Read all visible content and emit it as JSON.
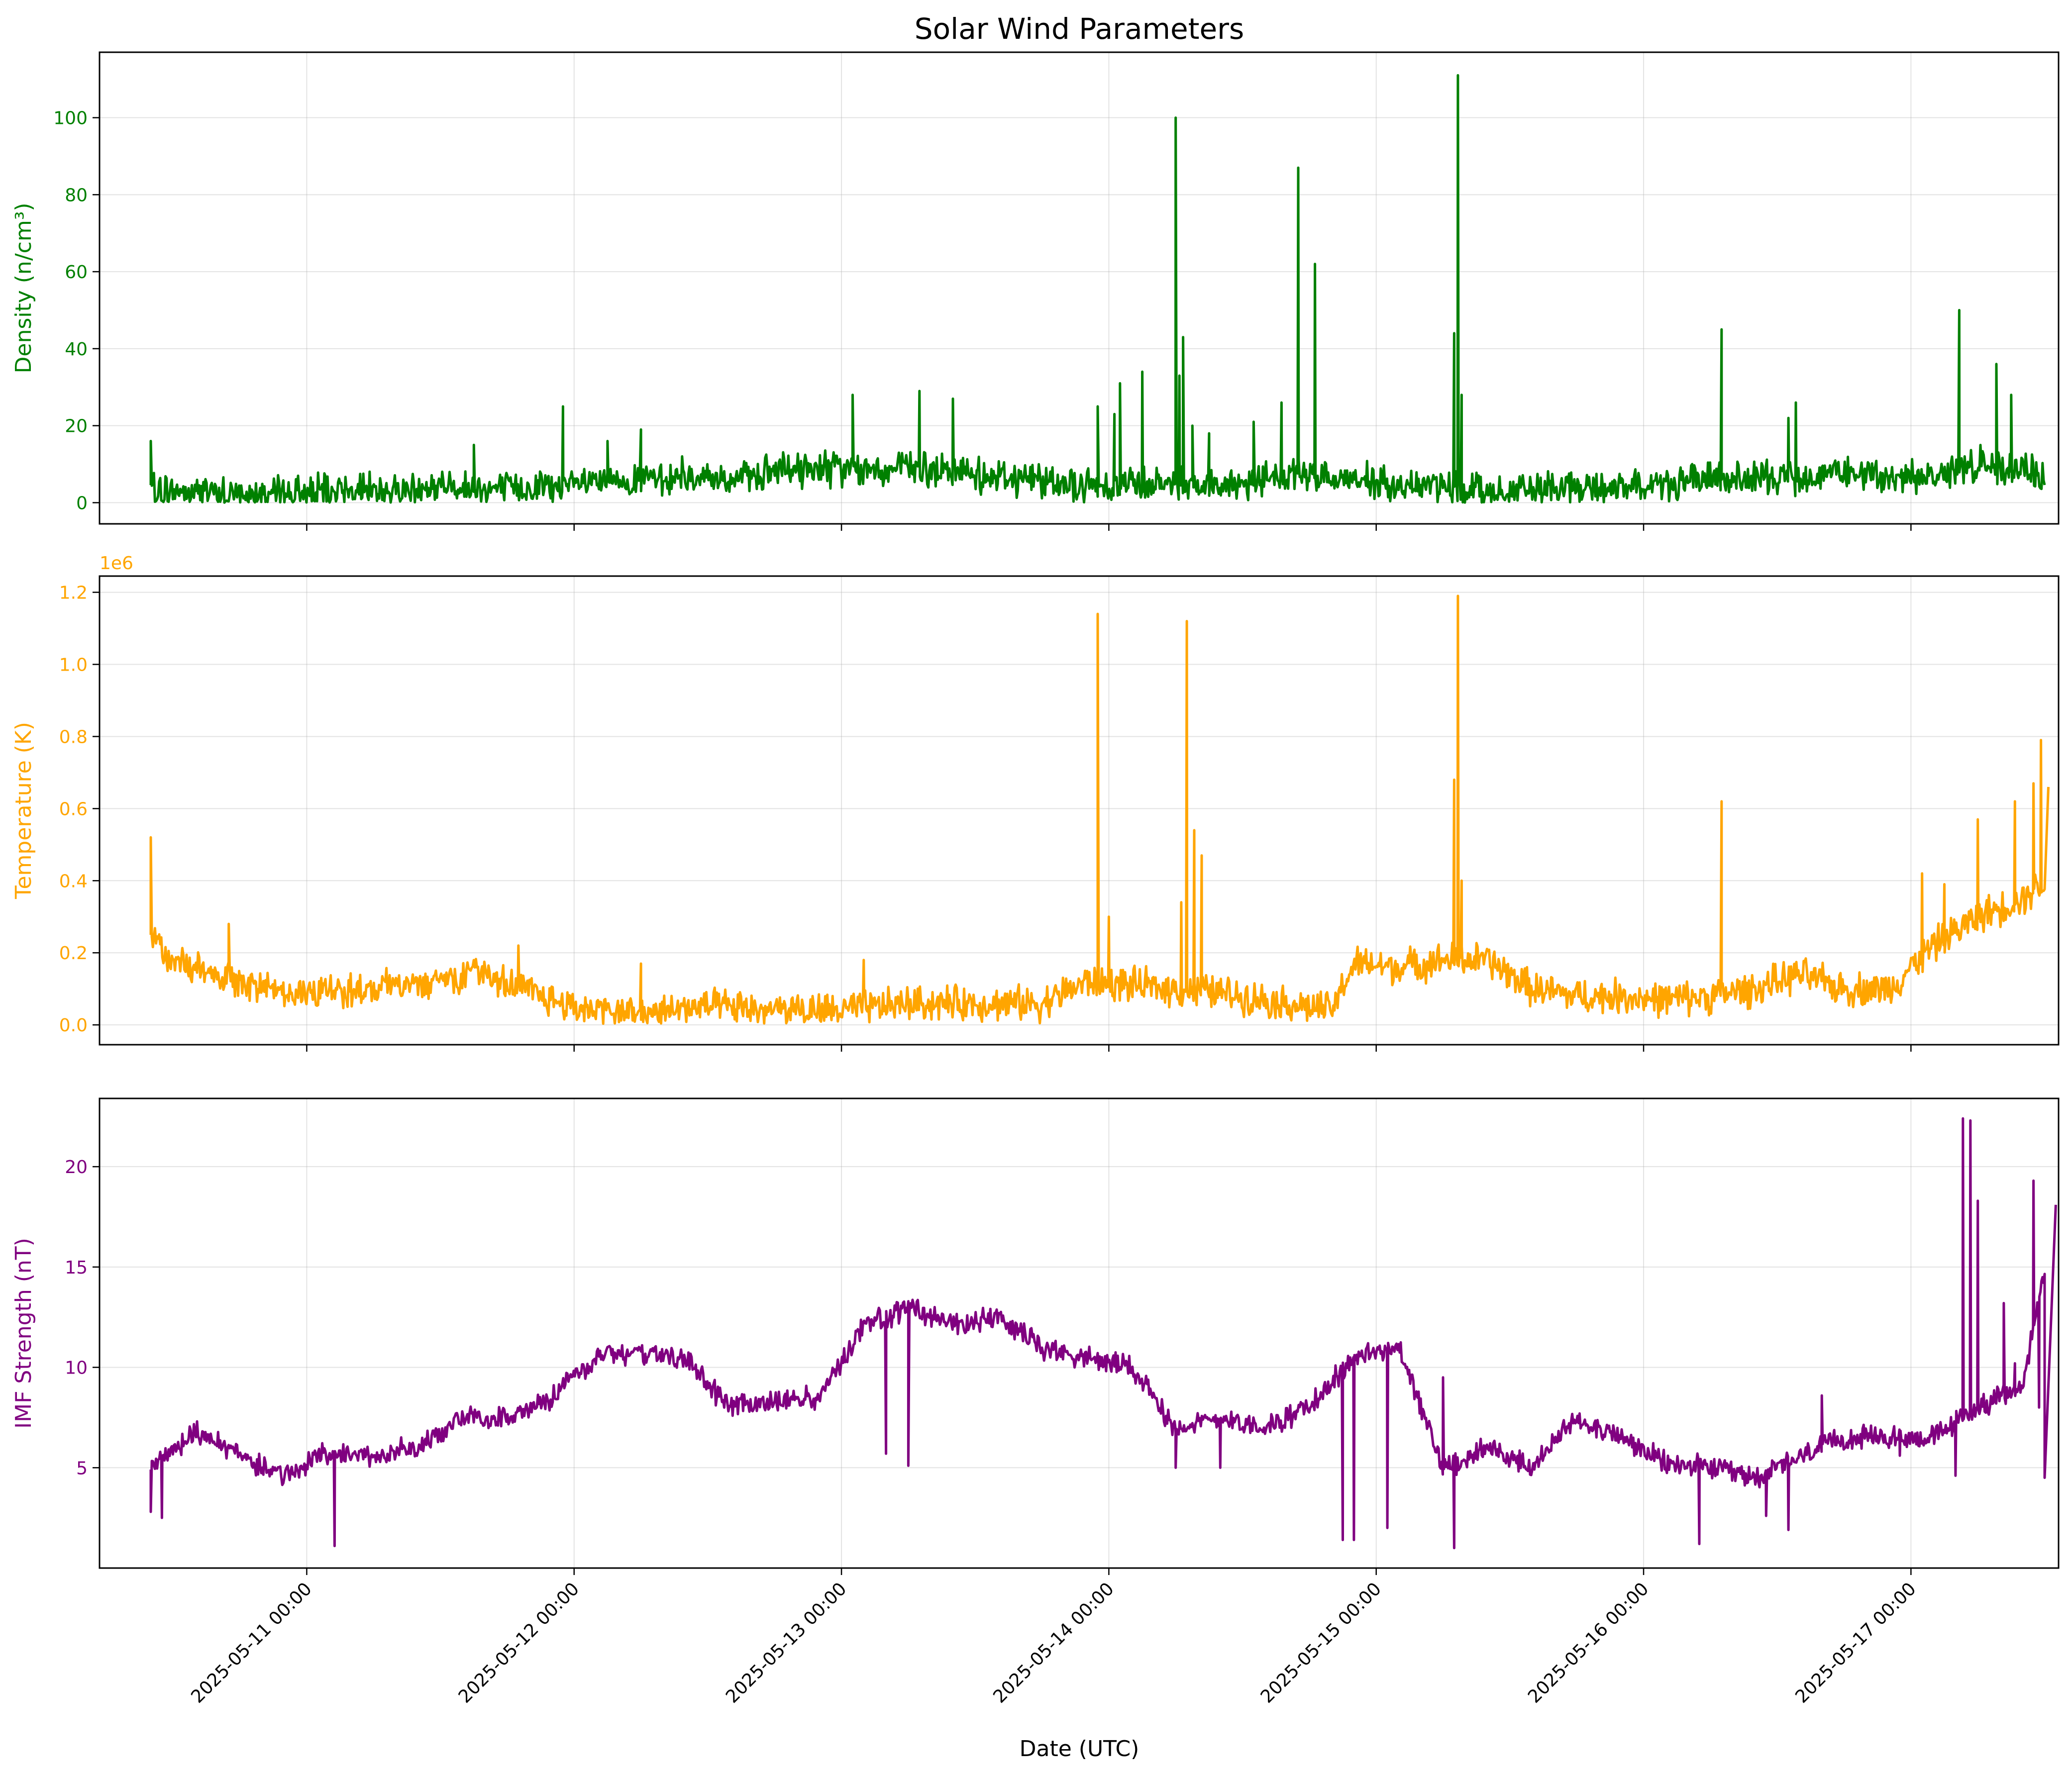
{
  "chart_data": {
    "type": "line",
    "title": "Solar Wind Parameters",
    "xlabel": "Date (UTC)",
    "x_ticks": [
      "2025-05-11 00:00",
      "2025-05-12 00:00",
      "2025-05-13 00:00",
      "2025-05-14 00:00",
      "2025-05-15 00:00",
      "2025-05-16 00:00",
      "2025-05-17 00:00"
    ],
    "x_range": [
      "2025-05-10 05:24",
      "2025-05-17 13:15"
    ],
    "grid": true,
    "panels": [
      {
        "name": "density",
        "ylabel": "Density (n/cm³)",
        "color": "#008000",
        "ylim": [
          -5.5,
          117
        ],
        "yticks": [
          0,
          20,
          40,
          60,
          80,
          100
        ],
        "offset_text": "",
        "series": {
          "x": [
            "2025-05-10 10:00",
            "2025-05-10 12:00",
            "2025-05-10 18:00",
            "2025-05-11 00:00",
            "2025-05-11 06:00",
            "2025-05-11 12:00",
            "2025-05-11 18:00",
            "2025-05-11 22:00",
            "2025-05-12 02:00",
            "2025-05-12 06:00",
            "2025-05-12 10:00",
            "2025-05-12 14:00",
            "2025-05-12 18:00",
            "2025-05-12 22:00",
            "2025-05-13 02:00",
            "2025-05-13 06:00",
            "2025-05-13 10:00",
            "2025-05-13 14:00",
            "2025-05-13 18:00",
            "2025-05-13 22:00",
            "2025-05-14 02:00",
            "2025-05-14 06:00",
            "2025-05-14 10:00",
            "2025-05-14 14:00",
            "2025-05-14 18:00",
            "2025-05-14 22:00",
            "2025-05-15 02:00",
            "2025-05-15 06:00",
            "2025-05-15 10:00",
            "2025-05-15 14:00",
            "2025-05-15 18:00",
            "2025-05-15 22:00",
            "2025-05-16 02:00",
            "2025-05-16 06:00",
            "2025-05-16 10:00",
            "2025-05-16 14:00",
            "2025-05-16 18:00",
            "2025-05-16 22:00",
            "2025-05-17 02:00",
            "2025-05-17 06:00",
            "2025-05-17 10:00",
            "2025-05-17 12:00"
          ],
          "y": [
            4,
            3,
            2,
            2.5,
            3,
            4,
            3.5,
            4,
            5,
            6,
            7,
            6,
            8,
            9,
            8,
            9,
            8,
            7,
            6,
            4,
            5,
            5,
            5,
            6,
            7,
            6,
            4,
            5,
            3,
            3,
            4,
            4,
            5,
            6,
            6,
            7,
            8,
            6,
            7,
            10,
            9,
            6
          ],
          "spikes": [
            {
              "x": "2025-05-10 10:00",
              "y": 16
            },
            {
              "x": "2025-05-11 15:00",
              "y": 15
            },
            {
              "x": "2025-05-11 23:00",
              "y": 25
            },
            {
              "x": "2025-05-12 03:00",
              "y": 16
            },
            {
              "x": "2025-05-12 06:00",
              "y": 19
            },
            {
              "x": "2025-05-13 01:00",
              "y": 28
            },
            {
              "x": "2025-05-13 07:00",
              "y": 29
            },
            {
              "x": "2025-05-13 10:00",
              "y": 27
            },
            {
              "x": "2025-05-13 23:00",
              "y": 25
            },
            {
              "x": "2025-05-14 00:30",
              "y": 23
            },
            {
              "x": "2025-05-14 01:00",
              "y": 31
            },
            {
              "x": "2025-05-14 03:00",
              "y": 34
            },
            {
              "x": "2025-05-14 06:00",
              "y": 100
            },
            {
              "x": "2025-05-14 06:20",
              "y": 33
            },
            {
              "x": "2025-05-14 06:40",
              "y": 43
            },
            {
              "x": "2025-05-14 07:30",
              "y": 20
            },
            {
              "x": "2025-05-14 09:00",
              "y": 18
            },
            {
              "x": "2025-05-14 13:00",
              "y": 21
            },
            {
              "x": "2025-05-14 15:30",
              "y": 26
            },
            {
              "x": "2025-05-14 17:00",
              "y": 87
            },
            {
              "x": "2025-05-14 18:30",
              "y": 62
            },
            {
              "x": "2025-05-15 07:00",
              "y": 44
            },
            {
              "x": "2025-05-15 07:20",
              "y": 111
            },
            {
              "x": "2025-05-15 07:40",
              "y": 28
            },
            {
              "x": "2025-05-16 07:00",
              "y": 45
            },
            {
              "x": "2025-05-16 13:00",
              "y": 22
            },
            {
              "x": "2025-05-16 13:40",
              "y": 26
            },
            {
              "x": "2025-05-17 04:20",
              "y": 50
            },
            {
              "x": "2025-05-17 07:40",
              "y": 36
            },
            {
              "x": "2025-05-17 09:00",
              "y": 28
            }
          ]
        }
      },
      {
        "name": "temperature",
        "ylabel": "Temperature (K)",
        "color": "#FFA500",
        "ylim": [
          -0.055,
          1.245
        ],
        "yticks": [
          0.0,
          0.2,
          0.4,
          0.6,
          0.8,
          1.0,
          1.2
        ],
        "offset_text": "1e6",
        "series": {
          "x": [
            "2025-05-10 10:00",
            "2025-05-10 12:00",
            "2025-05-10 18:00",
            "2025-05-11 00:00",
            "2025-05-11 06:00",
            "2025-05-11 12:00",
            "2025-05-11 16:00",
            "2025-05-11 20:00",
            "2025-05-12 00:00",
            "2025-05-12 06:00",
            "2025-05-12 12:00",
            "2025-05-12 18:00",
            "2025-05-13 00:00",
            "2025-05-13 06:00",
            "2025-05-13 12:00",
            "2025-05-13 18:00",
            "2025-05-13 22:00",
            "2025-05-14 02:00",
            "2025-05-14 06:00",
            "2025-05-14 10:00",
            "2025-05-14 14:00",
            "2025-05-14 18:00",
            "2025-05-14 20:00",
            "2025-05-14 22:00",
            "2025-05-15 02:00",
            "2025-05-15 06:00",
            "2025-05-15 10:00",
            "2025-05-15 14:00",
            "2025-05-15 18:00",
            "2025-05-15 22:00",
            "2025-05-16 02:00",
            "2025-05-16 06:00",
            "2025-05-16 10:00",
            "2025-05-16 14:00",
            "2025-05-16 18:00",
            "2025-05-16 22:00",
            "2025-05-17 02:00",
            "2025-05-17 06:00",
            "2025-05-17 10:00",
            "2025-05-17 12:00"
          ],
          "y": [
            0.25,
            0.17,
            0.12,
            0.09,
            0.1,
            0.13,
            0.15,
            0.09,
            0.05,
            0.03,
            0.05,
            0.04,
            0.04,
            0.06,
            0.06,
            0.06,
            0.12,
            0.11,
            0.1,
            0.09,
            0.07,
            0.05,
            0.04,
            0.17,
            0.16,
            0.18,
            0.18,
            0.1,
            0.08,
            0.08,
            0.07,
            0.08,
            0.1,
            0.14,
            0.1,
            0.1,
            0.22,
            0.3,
            0.35,
            0.4
          ],
          "spikes": [
            {
              "x": "2025-05-10 10:00",
              "y": 0.52
            },
            {
              "x": "2025-05-10 17:00",
              "y": 0.28
            },
            {
              "x": "2025-05-11 19:00",
              "y": 0.22
            },
            {
              "x": "2025-05-12 06:00",
              "y": 0.17
            },
            {
              "x": "2025-05-13 02:00",
              "y": 0.18
            },
            {
              "x": "2025-05-13 23:00",
              "y": 1.14
            },
            {
              "x": "2025-05-14 00:00",
              "y": 0.3
            },
            {
              "x": "2025-05-14 06:30",
              "y": 0.34
            },
            {
              "x": "2025-05-14 07:00",
              "y": 1.12
            },
            {
              "x": "2025-05-14 07:40",
              "y": 0.54
            },
            {
              "x": "2025-05-14 08:20",
              "y": 0.47
            },
            {
              "x": "2025-05-15 07:00",
              "y": 0.68
            },
            {
              "x": "2025-05-15 07:20",
              "y": 1.19
            },
            {
              "x": "2025-05-15 07:40",
              "y": 0.4
            },
            {
              "x": "2025-05-16 07:00",
              "y": 0.62
            },
            {
              "x": "2025-05-17 01:00",
              "y": 0.42
            },
            {
              "x": "2025-05-17 03:00",
              "y": 0.39
            },
            {
              "x": "2025-05-17 06:00",
              "y": 0.57
            },
            {
              "x": "2025-05-17 09:20",
              "y": 0.62
            },
            {
              "x": "2025-05-17 11:00",
              "y": 0.67
            },
            {
              "x": "2025-05-17 11:40",
              "y": 0.79
            },
            {
              "x": "2025-05-17 12:20",
              "y": 0.66
            }
          ]
        }
      },
      {
        "name": "imf",
        "ylabel": "IMF Strength (nT)",
        "color": "#800080",
        "ylim": [
          0,
          23.4
        ],
        "yticks": [
          5,
          10,
          15,
          20
        ],
        "offset_text": "",
        "series": {
          "x": [
            "2025-05-10 10:00",
            "2025-05-10 14:00",
            "2025-05-10 18:00",
            "2025-05-10 22:00",
            "2025-05-11 02:00",
            "2025-05-11 06:00",
            "2025-05-11 10:00",
            "2025-05-11 14:00",
            "2025-05-11 18:00",
            "2025-05-11 22:00",
            "2025-05-12 02:00",
            "2025-05-12 06:00",
            "2025-05-12 10:00",
            "2025-05-12 14:00",
            "2025-05-12 18:00",
            "2025-05-12 22:00",
            "2025-05-13 02:00",
            "2025-05-13 06:00",
            "2025-05-13 10:00",
            "2025-05-13 14:00",
            "2025-05-13 18:00",
            "2025-05-13 22:00",
            "2025-05-14 02:00",
            "2025-05-14 06:00",
            "2025-05-14 10:00",
            "2025-05-14 14:00",
            "2025-05-14 18:00",
            "2025-05-14 22:00",
            "2025-05-15 02:00",
            "2025-05-15 06:00",
            "2025-05-15 10:00",
            "2025-05-15 14:00",
            "2025-05-15 18:00",
            "2025-05-15 22:00",
            "2025-05-16 02:00",
            "2025-05-16 06:00",
            "2025-05-16 10:00",
            "2025-05-16 14:00",
            "2025-05-16 18:00",
            "2025-05-16 22:00",
            "2025-05-17 02:00",
            "2025-05-17 06:00",
            "2025-05-17 10:00",
            "2025-05-17 12:00"
          ],
          "y": [
            5.0,
            6.8,
            5.5,
            4.6,
            5.8,
            5.6,
            6.0,
            7.5,
            7.5,
            8.5,
            10.5,
            10.8,
            10.4,
            8.0,
            8.2,
            8.5,
            12.0,
            13.0,
            12.0,
            12.5,
            11.0,
            10.5,
            10.0,
            7.0,
            7.5,
            7.0,
            8.0,
            10.5,
            11.0,
            5.0,
            6.0,
            5.0,
            7.5,
            6.5,
            5.2,
            5.0,
            4.5,
            5.5,
            6.5,
            6.5,
            6.5,
            8.0,
            9.0,
            15.0
          ],
          "spikes": [
            {
              "x": "2025-05-10 10:00",
              "y": 2.8
            },
            {
              "x": "2025-05-10 11:00",
              "y": 2.5
            },
            {
              "x": "2025-05-11 02:30",
              "y": 1.1
            },
            {
              "x": "2025-05-13 04:00",
              "y": 5.7
            },
            {
              "x": "2025-05-13 06:00",
              "y": 5.1
            },
            {
              "x": "2025-05-14 06:00",
              "y": 5.0
            },
            {
              "x": "2025-05-14 10:00",
              "y": 5.0
            },
            {
              "x": "2025-05-14 21:00",
              "y": 1.4
            },
            {
              "x": "2025-05-14 22:00",
              "y": 1.4
            },
            {
              "x": "2025-05-15 01:00",
              "y": 2.0
            },
            {
              "x": "2025-05-15 06:00",
              "y": 9.5
            },
            {
              "x": "2025-05-15 07:00",
              "y": 1.0
            },
            {
              "x": "2025-05-16 05:00",
              "y": 1.2
            },
            {
              "x": "2025-05-16 11:00",
              "y": 2.6
            },
            {
              "x": "2025-05-16 13:00",
              "y": 1.9
            },
            {
              "x": "2025-05-16 16:00",
              "y": 8.6
            },
            {
              "x": "2025-05-16 23:00",
              "y": 5.6
            },
            {
              "x": "2025-05-17 04:00",
              "y": 4.6
            },
            {
              "x": "2025-05-17 04:40",
              "y": 22.4
            },
            {
              "x": "2025-05-17 05:20",
              "y": 22.3
            },
            {
              "x": "2025-05-17 06:00",
              "y": 18.3
            },
            {
              "x": "2025-05-17 08:20",
              "y": 13.2
            },
            {
              "x": "2025-05-17 09:20",
              "y": 10.2
            },
            {
              "x": "2025-05-17 11:00",
              "y": 19.3
            },
            {
              "x": "2025-05-17 11:30",
              "y": 8.0
            },
            {
              "x": "2025-05-17 12:00",
              "y": 4.5
            },
            {
              "x": "2025-05-17 13:00",
              "y": 18.1
            }
          ]
        }
      }
    ]
  }
}
